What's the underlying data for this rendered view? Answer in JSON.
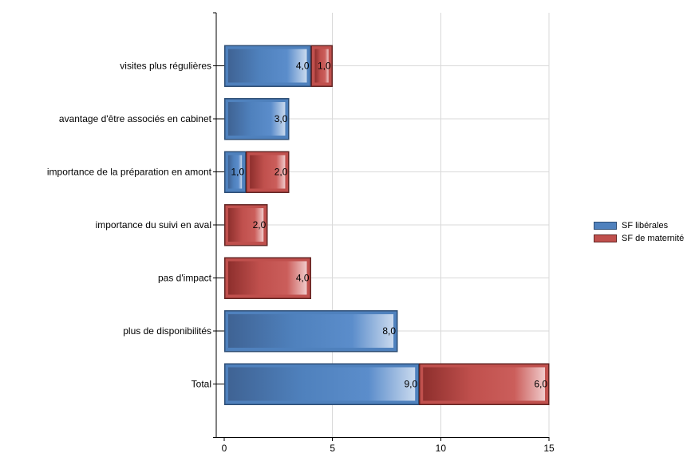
{
  "chart_data": {
    "type": "bar",
    "orientation": "horizontal",
    "stacked": true,
    "categories": [
      "visites plus régulières",
      "avantage d'être associés en cabinet",
      "importance de la préparation en amont",
      "importance du suivi en aval",
      "pas d'impact",
      "plus de disponibilités",
      "Total"
    ],
    "series": [
      {
        "name": "SF libérales",
        "color": "#4f81bd",
        "border": "#2c4d75",
        "values": [
          4.0,
          3.0,
          1.0,
          null,
          null,
          8.0,
          9.0
        ],
        "labels": [
          "4,0",
          "3,0",
          "1,0",
          "",
          "",
          "8,0",
          "9,0"
        ]
      },
      {
        "name": "SF de maternité",
        "color": "#c0504d",
        "border": "#632523",
        "values": [
          1.0,
          null,
          2.0,
          2.0,
          4.0,
          null,
          6.0
        ],
        "labels": [
          "1,0",
          "",
          "2,0",
          "2,0",
          "4,0",
          "",
          "6,0"
        ]
      }
    ],
    "xlim": [
      0,
      15
    ],
    "xticks": [
      0,
      5,
      10,
      15
    ],
    "xtick_labels": [
      "0",
      "5",
      "10",
      "15"
    ],
    "grid": true,
    "legend_position": "right",
    "title": "",
    "xlabel": "",
    "ylabel": ""
  }
}
